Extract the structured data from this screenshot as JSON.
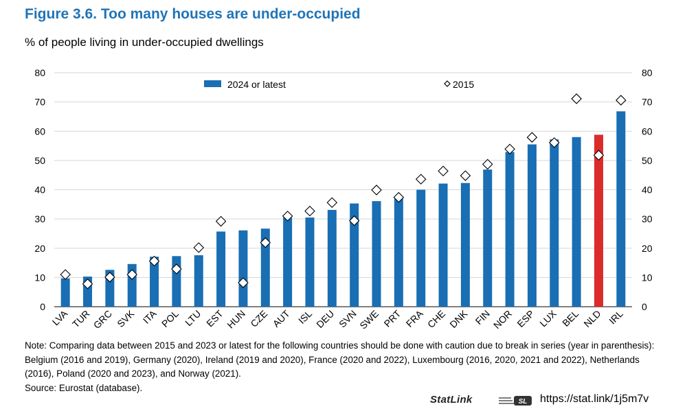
{
  "figure": {
    "title": "Figure 3.6. Too many houses are under-occupied",
    "subtitle": "% of people living in under-occupied dwellings"
  },
  "chart_data": {
    "type": "bar",
    "title": "Figure 3.6. Too many houses are under-occupied",
    "ylabel": "% of people living in under-occupied dwellings",
    "xlabel": "",
    "ylim": [
      0,
      80
    ],
    "yticks": [
      0,
      10,
      20,
      30,
      40,
      50,
      60,
      70,
      80
    ],
    "grid": true,
    "legend_position": "top",
    "categories": [
      "LVA",
      "TUR",
      "GRC",
      "SVK",
      "ITA",
      "POL",
      "LTU",
      "EST",
      "HUN",
      "CZE",
      "AUT",
      "ISL",
      "DEU",
      "SVN",
      "SWE",
      "PRT",
      "FRA",
      "CHE",
      "DNK",
      "FIN",
      "NOR",
      "ESP",
      "LUX",
      "BEL",
      "NLD",
      "IRL"
    ],
    "series": [
      {
        "name": "2024 or latest",
        "marker": "bar",
        "values": [
          9.7,
          10.3,
          12.6,
          14.6,
          17.1,
          17.3,
          17.6,
          25.7,
          26.1,
          26.7,
          30.5,
          30.5,
          33.1,
          35.3,
          36.1,
          37.1,
          40.0,
          42.1,
          42.3,
          46.9,
          52.9,
          55.5,
          57.2,
          58.0,
          58.8,
          66.8
        ]
      },
      {
        "name": "2015",
        "marker": "diamond",
        "values": [
          11.0,
          7.8,
          10.1,
          11.0,
          15.6,
          12.9,
          20.2,
          29.2,
          8.2,
          21.9,
          31.0,
          32.7,
          35.6,
          29.4,
          39.9,
          37.4,
          43.6,
          46.4,
          44.8,
          48.7,
          53.9,
          57.9,
          56.1,
          71.1,
          51.8,
          70.6
        ]
      }
    ],
    "highlight_category": "NLD",
    "colors": {
      "bar": "#1a6eb3",
      "highlight": "#dc2b2b",
      "diamond_stroke": "#000000",
      "diamond_fill": "#ffffff"
    }
  },
  "note": {
    "text": "Note: Comparing data between 2015 and 2023 or latest for the following countries should be done with caution due to break in series (year in parenthesis): Belgium (2016 and 2019), Germany (2020), Ireland (2019 and 2020), France (2020 and 2022), Luxembourg (2016, 2020, 2021 and 2022), Netherlands (2016), Poland (2020 and 2023), and Norway (2021).",
    "source": "Source: Eurostat (database)."
  },
  "statlink": {
    "label": "StatLink",
    "logo_text": "SL",
    "url": "https://stat.link/1j5m7v"
  }
}
